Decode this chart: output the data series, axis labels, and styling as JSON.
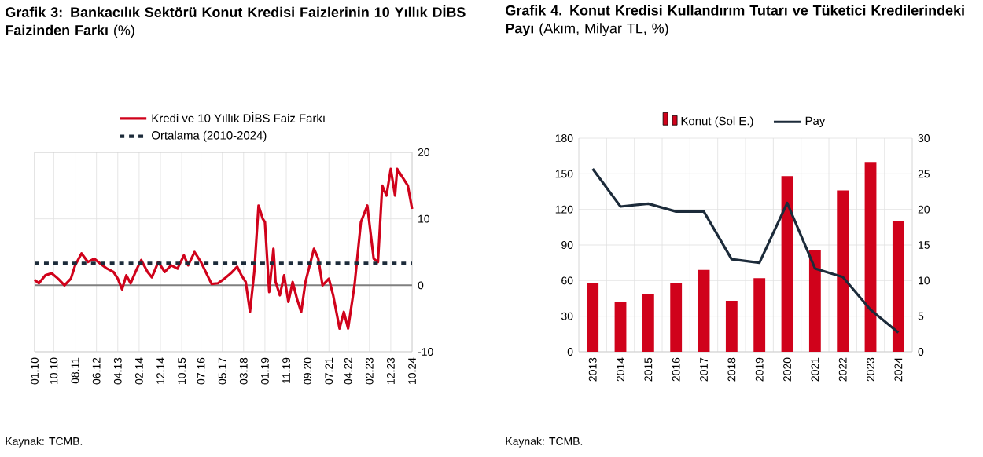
{
  "chart_data": [
    {
      "type": "line",
      "title": "**Grafik 3: Bankacılık Sektörü Konut Kredisi Faizlerinin 10 Yıllık DİBS Faizinden Farkı** (%)",
      "x": [
        "2010-01",
        "2010-03",
        "2010-06",
        "2010-09",
        "2010-12",
        "2011-03",
        "2011-06",
        "2011-08",
        "2011-11",
        "2012-02",
        "2012-05",
        "2012-08",
        "2012-11",
        "2013-02",
        "2013-04",
        "2013-06",
        "2013-08",
        "2013-10",
        "2014-01",
        "2014-03",
        "2014-06",
        "2014-08",
        "2014-11",
        "2015-02",
        "2015-05",
        "2015-08",
        "2015-11",
        "2016-01",
        "2016-04",
        "2016-07",
        "2016-10",
        "2016-12",
        "2017-03",
        "2017-06",
        "2017-09",
        "2017-12",
        "2018-02",
        "2018-04",
        "2018-06",
        "2018-08",
        "2018-10",
        "2018-12",
        "2019-01",
        "2019-03",
        "2019-05",
        "2019-06",
        "2019-08",
        "2019-10",
        "2019-12",
        "2020-02",
        "2020-04",
        "2020-06",
        "2020-08",
        "2020-10",
        "2020-12",
        "2021-02",
        "2021-04",
        "2021-07",
        "2021-09",
        "2021-12",
        "2022-02",
        "2022-04",
        "2022-07",
        "2022-10",
        "2023-01",
        "2023-04",
        "2023-06",
        "2023-08",
        "2023-10",
        "2023-12",
        "2024-02",
        "2024-03",
        "2024-06",
        "2024-08",
        "2024-10"
      ],
      "series": [
        {
          "name": "Kredi ve 10 Yıllık DİBS Faiz Farkı",
          "color": "#d0021b",
          "line_style": "solid",
          "values": [
            0.8,
            0.3,
            1.5,
            1.8,
            1.0,
            0.0,
            1.0,
            3.0,
            4.8,
            3.5,
            4.0,
            3.2,
            2.5,
            2.0,
            1.0,
            -0.6,
            1.5,
            0.3,
            2.5,
            3.8,
            2.0,
            1.2,
            3.5,
            2.0,
            3.0,
            2.5,
            4.5,
            3.0,
            5.0,
            3.5,
            1.5,
            0.2,
            0.3,
            1.0,
            1.8,
            2.8,
            1.5,
            0.5,
            -4.0,
            2.0,
            12.0,
            10.0,
            9.5,
            -1.0,
            5.5,
            0.5,
            -1.5,
            1.5,
            -2.5,
            0.5,
            -2.0,
            -4.0,
            0.5,
            3.0,
            5.5,
            4.0,
            0.0,
            1.0,
            -1.5,
            -6.5,
            -4.0,
            -6.5,
            0.0,
            9.5,
            12.0,
            4.0,
            3.5,
            15.0,
            13.5,
            17.5,
            13.5,
            17.5,
            16.0,
            15.0,
            11.5
          ]
        },
        {
          "name": "Ortalama (2010-2024)",
          "color": "#1c2b3a",
          "line_style": "dashed",
          "x": [
            "2010-01",
            "2024-10"
          ],
          "values": [
            3.3,
            3.3
          ]
        }
      ],
      "xlim": [
        "2010-01",
        "2024-10"
      ],
      "xticks": [
        {
          "value": "2010-01",
          "label": "01.10"
        },
        {
          "value": "2010-10",
          "label": "10.10"
        },
        {
          "value": "2011-08",
          "label": "08.11"
        },
        {
          "value": "2012-06",
          "label": "06.12"
        },
        {
          "value": "2013-04",
          "label": "04.13"
        },
        {
          "value": "2014-02",
          "label": "02.14"
        },
        {
          "value": "2014-12",
          "label": "12.14"
        },
        {
          "value": "2015-10",
          "label": "10.15"
        },
        {
          "value": "2016-07",
          "label": "07.16"
        },
        {
          "value": "2017-05",
          "label": "05.17"
        },
        {
          "value": "2018-03",
          "label": "03.18"
        },
        {
          "value": "2019-01",
          "label": "01.19"
        },
        {
          "value": "2019-11",
          "label": "11.19"
        },
        {
          "value": "2020-09",
          "label": "09.20"
        },
        {
          "value": "2021-07",
          "label": "07.21"
        },
        {
          "value": "2022-04",
          "label": "04.22"
        },
        {
          "value": "2023-02",
          "label": "02.23"
        },
        {
          "value": "2023-12",
          "label": "12.23"
        },
        {
          "value": "2024-10",
          "label": "10.24"
        }
      ],
      "ylim": [
        -10,
        20
      ],
      "yticks": [
        -10,
        0,
        10,
        20
      ],
      "ref_lines": [
        {
          "axis": "y",
          "value": 0,
          "color": "#808080"
        }
      ],
      "grid": true,
      "legend": "top",
      "annotations": [
        "Kaynak: TCMB."
      ]
    },
    {
      "type": "bar",
      "title": "**Grafik 4. Konut Kredisi Kullandırım Tutarı ve Tüketici Kredilerindeki Payı** (Akım, Milyar TL, %)",
      "categories": [
        "2013",
        "2014",
        "2015",
        "2016",
        "2017",
        "2018",
        "2019",
        "2020",
        "2021",
        "2022",
        "2023",
        "2024"
      ],
      "series": [
        {
          "name": "Konut (Sol E.)",
          "color": "#d0021b",
          "values": [
            58,
            42,
            49,
            58,
            69,
            43,
            62,
            148,
            86,
            136,
            160,
            110
          ]
        },
        {
          "name": "Pay",
          "type": "line",
          "axis": "y2",
          "color": "#1c2b3a",
          "values": [
            25.7,
            20.4,
            20.8,
            19.7,
            19.7,
            13.0,
            12.5,
            20.9,
            11.7,
            10.5,
            5.9,
            2.7
          ]
        }
      ],
      "ylim": [
        0,
        180
      ],
      "yticks": [
        0,
        30,
        60,
        90,
        120,
        150,
        180
      ],
      "y2lim": [
        0,
        30
      ],
      "y2ticks": [
        0,
        5,
        10,
        15,
        20,
        25,
        30
      ],
      "grid": true,
      "legend": "top",
      "annotations": [
        "Kaynak: TCMB."
      ]
    }
  ]
}
